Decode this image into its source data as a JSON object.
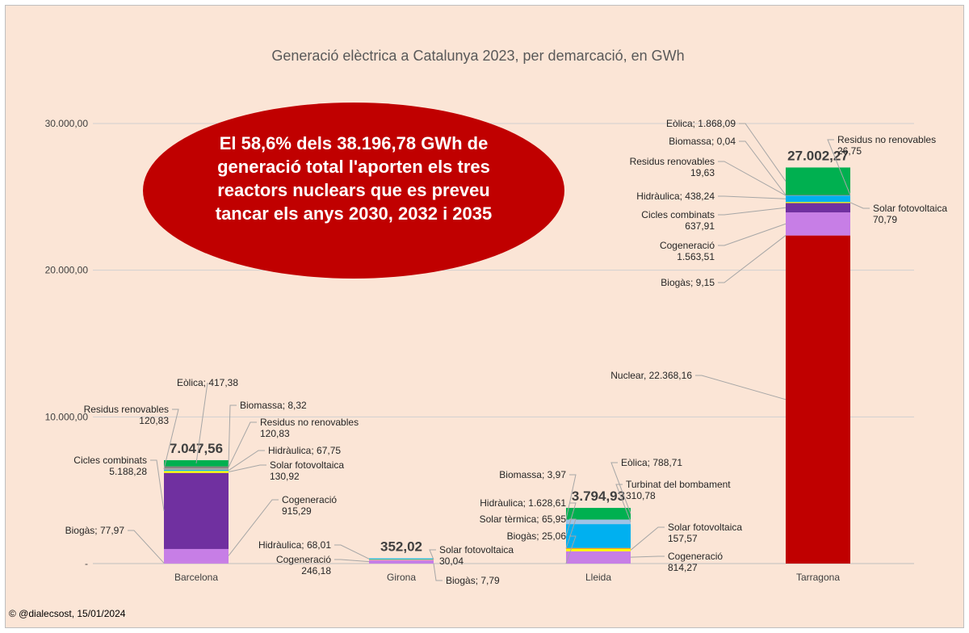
{
  "chart_data": {
    "type": "bar",
    "stacked": true,
    "title": "Generació elèctrica a Catalunya 2023, per demarcació, en GWh",
    "xlabel": "",
    "ylabel": "",
    "ylim": [
      0,
      30000
    ],
    "yticks": [
      0,
      10000,
      20000,
      30000
    ],
    "ytick_labels": [
      "-",
      "10.000,00",
      "20.000,00",
      "30.000,00"
    ],
    "grid": true,
    "legend": "none",
    "categories": [
      "Barcelona",
      "Girona",
      "Lleida",
      "Tarragona"
    ],
    "totals": [
      7047.56,
      352.02,
      3794.93,
      27002.27
    ],
    "total_labels": [
      "7.047,56",
      "352,02",
      "3.794,93",
      "27.002,27"
    ],
    "series": [
      {
        "name": "Nuclear",
        "color": "#c00000",
        "values": [
          0,
          0,
          0,
          22368.16
        ]
      },
      {
        "name": "Biogàs",
        "color": "#c77ee6",
        "values": [
          77.97,
          7.79,
          25.06,
          9.15
        ]
      },
      {
        "name": "Cogeneració",
        "color": "#c77ee6",
        "values": [
          915.29,
          246.18,
          814.27,
          1563.51
        ]
      },
      {
        "name": "Cicles combinats",
        "color": "#7030a0",
        "values": [
          5188.28,
          0,
          0,
          637.91
        ]
      },
      {
        "name": "Solar fotovoltaica",
        "color": "#ffff00",
        "values": [
          130.92,
          30.04,
          157.57,
          70.79
        ]
      },
      {
        "name": "Solar tèrmica",
        "color": "#ff9900",
        "values": [
          0,
          0,
          65.95,
          0
        ]
      },
      {
        "name": "Hidràulica",
        "color": "#00b0f0",
        "values": [
          67.75,
          68.01,
          1628.61,
          438.24
        ]
      },
      {
        "name": "Turbinat del bombament",
        "color": "#9dc3e6",
        "values": [
          0,
          0,
          310.78,
          0
        ]
      },
      {
        "name": "Residus renovables",
        "color": "#a6a6a6",
        "values": [
          120.83,
          0,
          0,
          19.63
        ]
      },
      {
        "name": "Residus no renovables",
        "color": "#7f7f7f",
        "values": [
          120.83,
          0,
          0,
          26.75
        ]
      },
      {
        "name": "Biomassa",
        "color": "#548235",
        "values": [
          8.32,
          0,
          3.97,
          0.04
        ]
      },
      {
        "name": "Eòlica",
        "color": "#00b050",
        "values": [
          417.38,
          0,
          788.71,
          1868.09
        ]
      }
    ],
    "data_labels": [
      {
        "cat": 0,
        "series": "Eòlica",
        "lines": [
          "Eòlica;  417,38"
        ]
      },
      {
        "cat": 0,
        "series": "Biomassa",
        "lines": [
          "Biomassa;  8,32"
        ]
      },
      {
        "cat": 0,
        "series": "Residus renovables",
        "lines": [
          "Residus renovables",
          "120,83"
        ]
      },
      {
        "cat": 0,
        "series": "Residus no renovables",
        "lines": [
          "Residus no renovables",
          "120,83"
        ]
      },
      {
        "cat": 0,
        "series": "Hidràulica",
        "lines": [
          "Hidràulica;  67,75"
        ]
      },
      {
        "cat": 0,
        "series": "Cicles combinats",
        "lines": [
          "Cicles combinats",
          "5.188,28"
        ]
      },
      {
        "cat": 0,
        "series": "Solar fotovoltaica",
        "lines": [
          "Solar fotovoltaica",
          "130,92"
        ]
      },
      {
        "cat": 0,
        "series": "Cogeneració",
        "lines": [
          "Cogeneració",
          "915,29"
        ]
      },
      {
        "cat": 0,
        "series": "Biogàs",
        "lines": [
          "Biogàs;  77,97"
        ]
      },
      {
        "cat": 1,
        "series": "Hidràulica",
        "lines": [
          "Hidràulica;  68,01"
        ]
      },
      {
        "cat": 1,
        "series": "Cogeneració",
        "lines": [
          "Cogeneració",
          "246,18"
        ]
      },
      {
        "cat": 1,
        "series": "Solar fotovoltaica",
        "lines": [
          "Solar fotovoltaica",
          "30,04"
        ]
      },
      {
        "cat": 1,
        "series": "Biogàs",
        "lines": [
          "Biogàs;  7,79"
        ]
      },
      {
        "cat": 2,
        "series": "Biomassa",
        "lines": [
          "Biomassa;  3,97"
        ]
      },
      {
        "cat": 2,
        "series": "Eòlica",
        "lines": [
          "Eòlica;  788,71"
        ]
      },
      {
        "cat": 2,
        "series": "Turbinat del bombament",
        "lines": [
          "Turbinat del bombament",
          "310,78"
        ]
      },
      {
        "cat": 2,
        "series": "Hidràulica",
        "lines": [
          "Hidràulica;  1.628,61"
        ]
      },
      {
        "cat": 2,
        "series": "Solar tèrmica",
        "lines": [
          "Solar tèrmica;  65,95"
        ]
      },
      {
        "cat": 2,
        "series": "Biogàs",
        "lines": [
          "Biogàs;  25,06"
        ]
      },
      {
        "cat": 2,
        "series": "Solar fotovoltaica",
        "lines": [
          "Solar fotovoltaica",
          "157,57"
        ]
      },
      {
        "cat": 2,
        "series": "Cogeneració",
        "lines": [
          "Cogeneració",
          "814,27"
        ]
      },
      {
        "cat": 3,
        "series": "Eòlica",
        "lines": [
          "Eòlica;  1.868,09"
        ]
      },
      {
        "cat": 3,
        "series": "Biomassa",
        "lines": [
          "Biomassa;  0,04"
        ]
      },
      {
        "cat": 3,
        "series": "Residus no renovables",
        "lines": [
          "Residus no renovables",
          "26,75"
        ]
      },
      {
        "cat": 3,
        "series": "Residus renovables",
        "lines": [
          "Residus renovables",
          "19,63"
        ]
      },
      {
        "cat": 3,
        "series": "Hidràulica",
        "lines": [
          "Hidràulica;  438,24"
        ]
      },
      {
        "cat": 3,
        "series": "Solar fotovoltaica",
        "lines": [
          "Solar fotovoltaica",
          "70,79"
        ]
      },
      {
        "cat": 3,
        "series": "Cicles combinats",
        "lines": [
          "Cicles combinats",
          "637,91"
        ]
      },
      {
        "cat": 3,
        "series": "Cogeneració",
        "lines": [
          "Cogeneració",
          "1.563,51"
        ]
      },
      {
        "cat": 3,
        "series": "Biogàs",
        "lines": [
          "Biogàs;  9,15"
        ]
      },
      {
        "cat": 3,
        "series": "Nuclear",
        "lines": [
          "Nuclear,  22.368,16"
        ]
      }
    ]
  },
  "callout": {
    "text": "El 58,6% dels 38.196,78 GWh de generació total l'aporten els tres reactors nuclears que es preveu tancar els anys 2030, 2032 i 2035",
    "color": "#c00000"
  },
  "credit": "© @dialecsost, 15/01/2024"
}
